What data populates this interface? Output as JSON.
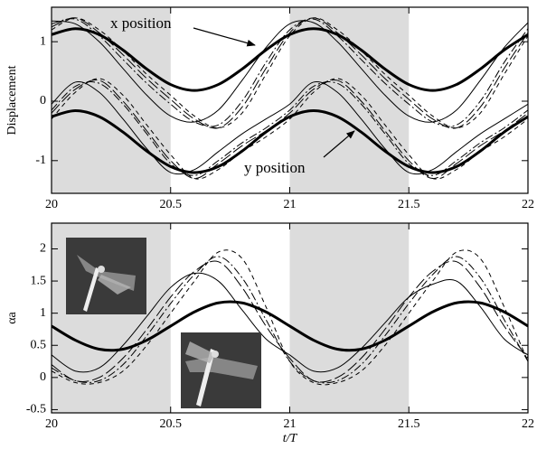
{
  "chart_data": [
    {
      "type": "line",
      "ylabel": "Displacement",
      "x": [
        20,
        20.1,
        20.2,
        20.3,
        20.4,
        20.5,
        20.6,
        20.7,
        20.8,
        20.9,
        21,
        21.1,
        21.2,
        21.3,
        21.4,
        21.5,
        21.6,
        21.7,
        21.8,
        21.9,
        22
      ],
      "xlim": [
        20,
        22
      ],
      "xticks": [
        20,
        20.5,
        21,
        21.5,
        22
      ],
      "ylim": [
        -1.55,
        1.58
      ],
      "yticks": [
        -1,
        0,
        1
      ],
      "shaded_regions": [
        [
          20,
          20.5
        ],
        [
          21,
          21.5
        ]
      ],
      "annotations": [
        {
          "text": "x position"
        },
        {
          "text": "y position"
        }
      ],
      "series": [
        {
          "color": "#000000",
          "dash": "solid",
          "width": 3,
          "values": [
            1.12,
            1.22,
            1.12,
            0.86,
            0.54,
            0.28,
            0.18,
            0.28,
            0.54,
            0.86,
            1.12,
            1.22,
            1.12,
            0.86,
            0.54,
            0.28,
            0.18,
            0.28,
            0.54,
            0.86,
            1.12
          ]
        },
        {
          "color": "#000000",
          "dash": "solid",
          "width": 1,
          "values": [
            1.35,
            1.3,
            1.0,
            0.55,
            0.1,
            -0.25,
            -0.35,
            -0.15,
            0.35,
            0.9,
            1.3,
            1.32,
            1.0,
            0.55,
            0.1,
            -0.25,
            -0.35,
            -0.15,
            0.35,
            0.9,
            1.32
          ]
        },
        {
          "color": "#000000",
          "dash": "dash-dot",
          "width": 1,
          "values": [
            1.3,
            1.38,
            1.1,
            0.7,
            0.3,
            -0.05,
            -0.35,
            -0.4,
            0.0,
            0.65,
            1.2,
            1.38,
            1.1,
            0.7,
            0.3,
            -0.05,
            -0.35,
            -0.4,
            0.0,
            0.65,
            1.22
          ]
        },
        {
          "color": "#000000",
          "dash": "long-dash",
          "width": 1,
          "values": [
            1.25,
            1.4,
            1.15,
            0.78,
            0.38,
            0.03,
            -0.3,
            -0.45,
            -0.1,
            0.55,
            1.15,
            1.4,
            1.15,
            0.78,
            0.38,
            0.03,
            -0.3,
            -0.45,
            -0.1,
            0.55,
            1.15
          ]
        },
        {
          "color": "#000000",
          "dash": "dashed",
          "width": 1,
          "values": [
            1.2,
            1.4,
            1.2,
            0.85,
            0.45,
            0.1,
            -0.25,
            -0.45,
            -0.2,
            0.45,
            1.1,
            1.4,
            1.2,
            0.85,
            0.45,
            0.1,
            -0.25,
            -0.45,
            -0.2,
            0.45,
            1.1
          ]
        },
        {
          "color": "#000000",
          "dash": "solid",
          "width": 3,
          "values": [
            -0.26,
            -0.16,
            -0.26,
            -0.52,
            -0.84,
            -1.1,
            -1.2,
            -1.1,
            -0.84,
            -0.52,
            -0.26,
            -0.16,
            -0.26,
            -0.52,
            -0.84,
            -1.1,
            -1.2,
            -1.1,
            -0.84,
            -0.52,
            -0.26
          ]
        },
        {
          "color": "#000000",
          "dash": "solid",
          "width": 1,
          "values": [
            -0.05,
            0.32,
            0.15,
            -0.3,
            -0.8,
            -1.2,
            -1.15,
            -0.85,
            -0.55,
            -0.3,
            -0.05,
            0.32,
            0.15,
            -0.3,
            -0.8,
            -1.2,
            -1.15,
            -0.85,
            -0.55,
            -0.3,
            -0.05
          ]
        },
        {
          "color": "#000000",
          "dash": "dash-dot",
          "width": 1,
          "values": [
            -0.15,
            0.25,
            0.3,
            -0.05,
            -0.55,
            -1.05,
            -1.25,
            -1.0,
            -0.7,
            -0.45,
            -0.15,
            0.25,
            0.3,
            -0.05,
            -0.55,
            -1.05,
            -1.25,
            -1.0,
            -0.7,
            -0.45,
            -0.15
          ]
        },
        {
          "color": "#000000",
          "dash": "long-dash",
          "width": 1,
          "values": [
            -0.2,
            0.2,
            0.35,
            0.0,
            -0.5,
            -1.0,
            -1.3,
            -1.05,
            -0.75,
            -0.5,
            -0.2,
            0.2,
            0.35,
            0.0,
            -0.5,
            -1.0,
            -1.3,
            -1.05,
            -0.75,
            -0.5,
            -0.2
          ]
        },
        {
          "color": "#000000",
          "dash": "dashed",
          "width": 1,
          "values": [
            -0.3,
            0.15,
            0.38,
            0.1,
            -0.4,
            -0.9,
            -1.3,
            -1.15,
            -0.85,
            -0.6,
            -0.3,
            0.15,
            0.38,
            0.1,
            -0.4,
            -0.9,
            -1.3,
            -1.15,
            -0.85,
            -0.6,
            -0.3
          ]
        }
      ]
    },
    {
      "type": "line",
      "ylabel": "αa",
      "xlabel": "t/T",
      "x": [
        20,
        20.1,
        20.2,
        20.3,
        20.4,
        20.5,
        20.6,
        20.7,
        20.8,
        20.9,
        21,
        21.1,
        21.2,
        21.3,
        21.4,
        21.5,
        21.6,
        21.7,
        21.8,
        21.9,
        22
      ],
      "xlim": [
        20,
        22
      ],
      "xticks": [
        20,
        20.5,
        21,
        21.5,
        22
      ],
      "ylim": [
        -0.55,
        2.4
      ],
      "yticks": [
        -0.5,
        0,
        0.5,
        1,
        1.5,
        2
      ],
      "shaded_regions": [
        [
          20,
          20.5
        ],
        [
          21,
          21.5
        ]
      ],
      "series": [
        {
          "color": "#000000",
          "dash": "solid",
          "width": 3,
          "values": [
            0.8,
            0.58,
            0.44,
            0.44,
            0.58,
            0.8,
            1.02,
            1.16,
            1.16,
            1.02,
            0.8,
            0.58,
            0.44,
            0.44,
            0.58,
            0.8,
            1.02,
            1.16,
            1.16,
            1.02,
            0.8
          ]
        },
        {
          "color": "#000000",
          "dash": "solid",
          "width": 1,
          "values": [
            0.35,
            0.1,
            0.15,
            0.5,
            0.95,
            1.4,
            1.62,
            1.5,
            1.05,
            0.6,
            0.35,
            0.1,
            0.15,
            0.45,
            0.85,
            1.25,
            1.45,
            1.5,
            1.1,
            0.6,
            0.35
          ]
        },
        {
          "color": "#000000",
          "dash": "long-dash",
          "width": 1,
          "values": [
            0.2,
            -0.05,
            0.0,
            0.3,
            0.75,
            1.25,
            1.65,
            1.8,
            1.4,
            0.8,
            0.3,
            -0.05,
            0.0,
            0.3,
            0.75,
            1.25,
            1.65,
            1.8,
            1.4,
            0.8,
            0.3
          ]
        },
        {
          "color": "#000000",
          "dash": "dash-dot",
          "width": 1,
          "values": [
            0.15,
            -0.05,
            -0.05,
            0.2,
            0.65,
            1.15,
            1.6,
            1.88,
            1.55,
            0.9,
            0.25,
            -0.05,
            -0.05,
            0.2,
            0.65,
            1.15,
            1.6,
            1.88,
            1.55,
            0.9,
            0.25
          ]
        },
        {
          "color": "#000000",
          "dash": "dashed",
          "width": 1,
          "values": [
            0.1,
            -0.08,
            -0.08,
            0.1,
            0.5,
            1.0,
            1.5,
            1.95,
            1.85,
            1.1,
            0.25,
            -0.08,
            -0.08,
            0.1,
            0.5,
            1.0,
            1.5,
            1.95,
            1.85,
            1.1,
            0.25
          ]
        }
      ]
    }
  ]
}
